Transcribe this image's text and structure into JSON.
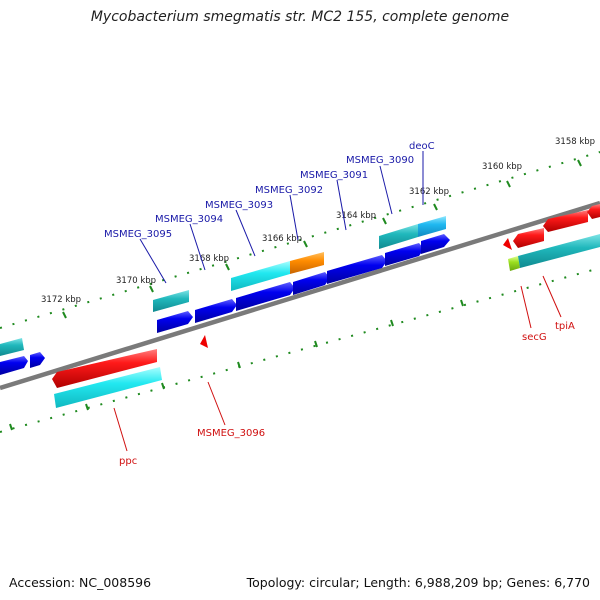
{
  "title": "Mycobacterium smegmatis str. MC2 155, complete genome",
  "footer": {
    "accession": "Accession: NC_008596",
    "topology": "Topology: circular; Length: 6,988,209 bp; Genes: 6,770"
  },
  "ruler_labels": [
    "3172 kbp",
    "3170 kbp",
    "3168 kbp",
    "3166 kbp",
    "3164 kbp",
    "3162 kbp",
    "3160 kbp",
    "3158 kbp"
  ],
  "forward_gene_labels": [
    "MSMEG_3095",
    "MSMEG_3094",
    "MSMEG_3093",
    "MSMEG_3092",
    "MSMEG_3091",
    "MSMEG_3090",
    "deoC"
  ],
  "reverse_gene_labels": [
    "ppc",
    "MSMEG_3096",
    "secG",
    "tpiA"
  ],
  "colors": {
    "backbone": "#808080",
    "forward_cds": "#0000ee",
    "reverse_cds": "#ee0000",
    "feature_cyan": "#22e0e8",
    "feature_teal": "#20b4b8",
    "feature_orange": "#ff8c00",
    "feature_lime": "#9ce020",
    "ticks": "#1f8a1f",
    "forward_label": "#1a1aa8",
    "reverse_label": "#d01010"
  }
}
